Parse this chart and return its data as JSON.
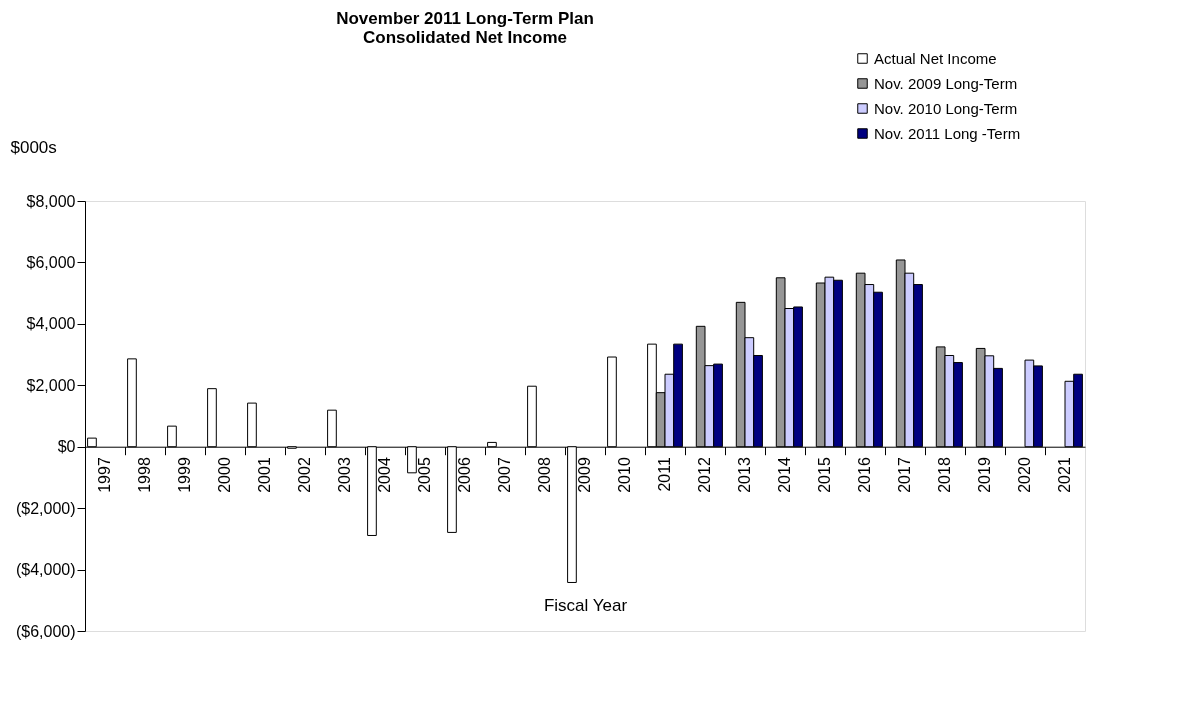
{
  "chart_data": {
    "type": "bar",
    "title": [
      "November 2011 Long-Term Plan",
      "Consolidated Net Income"
    ],
    "xlabel": "Fiscal Year",
    "ylabel": "$000s",
    "categories": [
      "1997",
      "1998",
      "1999",
      "2000",
      "2001",
      "2002",
      "2003",
      "2004",
      "2005",
      "2006",
      "2007",
      "2008",
      "2009",
      "2010",
      "2011",
      "2012",
      "2013",
      "2014",
      "2015",
      "2016",
      "2017",
      "2018",
      "2019",
      "2020",
      "2021"
    ],
    "series": [
      {
        "name": "Actual Net Income",
        "color": "#ffffff",
        "values": [
          280,
          2860,
          670,
          1890,
          1420,
          -50,
          1190,
          -2890,
          -850,
          -2790,
          140,
          1970,
          -4420,
          2920,
          3340,
          null,
          null,
          null,
          null,
          null,
          null,
          null,
          null,
          null,
          null
        ]
      },
      {
        "name": "Nov. 2009  Long-Term",
        "color": "#969696",
        "values": [
          null,
          null,
          null,
          null,
          null,
          null,
          null,
          null,
          null,
          null,
          null,
          null,
          null,
          null,
          1760,
          3920,
          4700,
          5500,
          5330,
          5650,
          6080,
          3250,
          3200,
          null,
          null
        ]
      },
      {
        "name": "Nov. 2010  Long-Term",
        "color": "#ccccff",
        "values": [
          null,
          null,
          null,
          null,
          null,
          null,
          null,
          null,
          null,
          null,
          null,
          null,
          null,
          null,
          2360,
          2640,
          3550,
          4500,
          5520,
          5280,
          5650,
          2970,
          2960,
          2820,
          2130
        ]
      },
      {
        "name": "Nov. 2011 Long -Term",
        "color": "#000080",
        "values": [
          null,
          null,
          null,
          null,
          null,
          null,
          null,
          null,
          null,
          null,
          null,
          null,
          null,
          null,
          3340,
          2690,
          2970,
          4550,
          5420,
          5030,
          5280,
          2740,
          2550,
          2630,
          2360
        ]
      }
    ],
    "ylim": [
      -6000,
      8000
    ],
    "yticks": [
      {
        "value": -6000,
        "label": "($6,000)"
      },
      {
        "value": -4000,
        "label": "($4,000)"
      },
      {
        "value": -2000,
        "label": "($2,000)"
      },
      {
        "value": 0,
        "label": "$0"
      },
      {
        "value": 2000,
        "label": "$2,000"
      },
      {
        "value": 4000,
        "label": "$4,000"
      },
      {
        "value": 6000,
        "label": "$6,000"
      },
      {
        "value": 8000,
        "label": "$8,000"
      }
    ],
    "legend": "top right",
    "grid": false
  }
}
